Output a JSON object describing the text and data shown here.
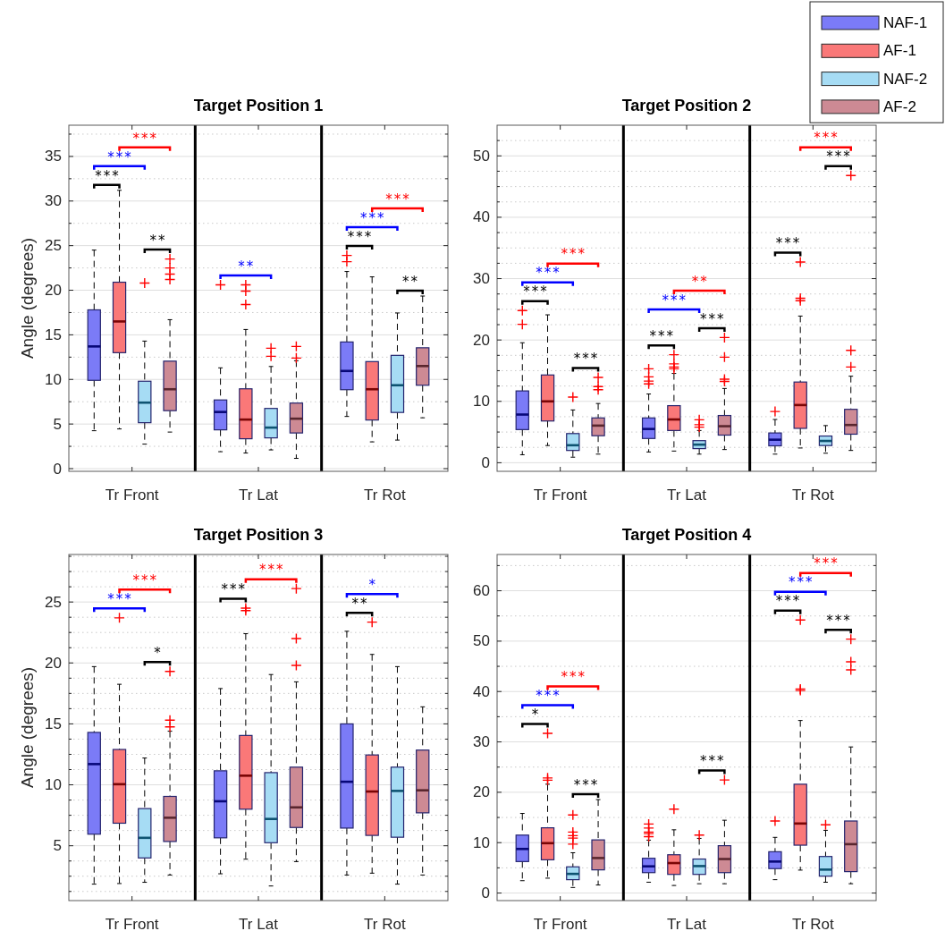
{
  "chart_data": [
    {
      "type": "box",
      "title": "Target Position 1",
      "ylabel": "Angle (degrees)",
      "categories": [
        "Tr Front",
        "Tr Lat",
        "Tr Rot"
      ],
      "ylim": [
        -0.3,
        38.5
      ],
      "yticks": [
        0,
        {
          "value": 2.5,
          "label": null
        },
        5,
        {
          "value": 7.5,
          "label": null
        },
        10,
        {
          "value": 12.5,
          "label": null
        },
        15,
        {
          "value": 17.5,
          "label": null
        },
        20,
        {
          "value": 22.5,
          "label": null
        },
        25,
        {
          "value": 27.5,
          "label": null
        },
        30,
        {
          "value": 32.5,
          "label": null
        },
        35,
        {
          "value": 37.5,
          "label": null
        }
      ],
      "grid": "y",
      "series": [
        {
          "color": "#7b7bf7",
          "boxes": [
            {
              "low": 4.25,
              "q1": 9.9,
              "median": 13.7,
              "q3": 17.8,
              "high": 24.5
            },
            {
              "low": 1.9,
              "q1": 4.35,
              "median": 6.35,
              "q3": 7.7,
              "high": 11.3,
              "outliers": [
                20.6
              ]
            },
            {
              "low": 5.85,
              "q1": 8.85,
              "median": 10.95,
              "q3": 14.2,
              "high": 22.1,
              "outliers": [
                23.9,
                23.2
              ]
            }
          ]
        },
        {
          "color": "#fa7878",
          "boxes": [
            {
              "low": 4.45,
              "q1": 13.0,
              "median": 16.5,
              "q3": 20.9,
              "high": 31.2
            },
            {
              "low": 1.75,
              "q1": 3.35,
              "median": 5.5,
              "q3": 8.95,
              "high": 15.6,
              "outliers": [
                20.6,
                19.9,
                18.4
              ]
            },
            {
              "low": 3.0,
              "q1": 5.45,
              "median": 8.9,
              "q3": 12.0,
              "high": 21.5
            }
          ]
        },
        {
          "color": "#a6dcf4",
          "boxes": [
            {
              "low": 2.75,
              "q1": 5.15,
              "median": 7.4,
              "q3": 9.8,
              "high": 14.3,
              "outliers": [
                20.8
              ]
            },
            {
              "low": 2.1,
              "q1": 3.45,
              "median": 4.6,
              "q3": 6.75,
              "high": 11.45,
              "outliers": [
                13.5,
                12.6
              ]
            },
            {
              "low": 3.2,
              "q1": 6.3,
              "median": 9.35,
              "q3": 12.7,
              "high": 17.45
            }
          ]
        },
        {
          "color": "#cd8a94",
          "boxes": [
            {
              "low": 4.1,
              "q1": 6.5,
              "median": 8.9,
              "q3": 12.05,
              "high": 16.7,
              "outliers": [
                23.5,
                22.5,
                21.8,
                21.2
              ]
            },
            {
              "low": 1.15,
              "q1": 4.0,
              "median": 5.6,
              "q3": 7.35,
              "high": 12.1,
              "outliers": [
                13.7,
                12.4
              ]
            },
            {
              "low": 5.7,
              "q1": 9.35,
              "median": 11.5,
              "q3": 13.55,
              "high": 19.35
            }
          ]
        }
      ],
      "annotations": [
        "***",
        "***",
        "***",
        "**",
        "**",
        "***",
        "***",
        "***",
        "**"
      ]
    },
    {
      "type": "box",
      "title": "Target Position 2",
      "categories": [
        "Tr Front",
        "Tr Lat",
        "Tr Rot"
      ],
      "ylim": [
        -1.4,
        55
      ],
      "yticks": [
        0,
        {
          "value": 2.5,
          "label": null
        },
        {
          "value": 5,
          "label": null
        },
        {
          "value": 7.5,
          "label": null
        },
        10,
        {
          "value": 12.5,
          "label": null
        },
        {
          "value": 15,
          "label": null
        },
        {
          "value": 17.5,
          "label": null
        },
        20,
        {
          "value": 22.5,
          "label": null
        },
        {
          "value": 25,
          "label": null
        },
        {
          "value": 27.5,
          "label": null
        },
        30,
        {
          "value": 32.5,
          "label": null
        },
        {
          "value": 35,
          "label": null
        },
        {
          "value": 37.5,
          "label": null
        },
        40,
        {
          "value": 42.5,
          "label": null
        },
        {
          "value": 45,
          "label": null
        },
        {
          "value": 47.5,
          "label": null
        },
        50,
        {
          "value": 52.5,
          "label": null
        }
      ],
      "grid": "y",
      "legend": "top right",
      "series": [
        {
          "name": "NAF-1",
          "color": "#7b7bf7",
          "boxes": [
            {
              "low": 1.3,
              "q1": 5.4,
              "median": 7.85,
              "q3": 11.7,
              "high": 19.55,
              "outliers": [
                24.8,
                22.55
              ]
            },
            {
              "low": 1.75,
              "q1": 3.95,
              "median": 5.5,
              "q3": 7.3,
              "high": 11.2,
              "outliers": [
                15.3,
                14.0,
                13.3,
                12.85
              ]
            },
            {
              "low": 1.4,
              "q1": 2.75,
              "median": 3.75,
              "q3": 4.85,
              "high": 7.05,
              "outliers": [
                8.35
              ]
            }
          ]
        },
        {
          "name": "AF-1",
          "color": "#fa7878",
          "boxes": [
            {
              "low": 2.8,
              "q1": 6.8,
              "median": 10.0,
              "q3": 14.3,
              "high": 24.1
            },
            {
              "low": 1.9,
              "q1": 5.25,
              "median": 7.05,
              "q3": 9.3,
              "high": 14.55,
              "outliers": [
                17.6,
                16.1,
                15.6,
                15.3
              ]
            },
            {
              "low": 2.4,
              "q1": 5.6,
              "median": 9.4,
              "q3": 13.15,
              "high": 23.9,
              "outliers": [
                32.7,
                26.8,
                26.4
              ]
            }
          ]
        },
        {
          "name": "NAF-2",
          "color": "#a6dcf4",
          "boxes": [
            {
              "low": 0.9,
              "q1": 2.0,
              "median": 2.85,
              "q3": 4.75,
              "high": 8.6,
              "outliers": [
                10.7
              ]
            },
            {
              "low": 1.4,
              "q1": 2.3,
              "median": 2.95,
              "q3": 3.6,
              "high": 5.25,
              "outliers": [
                7.0,
                6.2,
                5.8
              ]
            },
            {
              "low": 1.55,
              "q1": 2.8,
              "median": 3.55,
              "q3": 4.35,
              "high": 6.05
            }
          ]
        },
        {
          "name": "AF-2",
          "color": "#cd8a94",
          "boxes": [
            {
              "low": 1.4,
              "q1": 4.4,
              "median": 6.05,
              "q3": 7.3,
              "high": 9.65,
              "outliers": [
                13.9,
                12.4,
                11.9
              ]
            },
            {
              "low": 2.15,
              "q1": 4.5,
              "median": 5.95,
              "q3": 7.7,
              "high": 12.1,
              "outliers": [
                20.4,
                17.2,
                13.6,
                13.25
              ]
            },
            {
              "low": 2.0,
              "q1": 4.65,
              "median": 6.15,
              "q3": 8.7,
              "high": 14.1,
              "outliers": [
                46.8,
                18.3,
                15.6
              ]
            }
          ]
        }
      ],
      "annotations": [
        "***",
        "***",
        "***",
        "***",
        "***",
        "***",
        "**",
        "***",
        "***",
        "***",
        "***"
      ]
    },
    {
      "type": "box",
      "title": "Target Position 3",
      "ylabel": "Angle (degrees)",
      "categories": [
        "Tr Front",
        "Tr Lat",
        "Tr Rot"
      ],
      "ylim": [
        0.5,
        28.9
      ],
      "yticks": [
        {
          "value": 1.25,
          "label": null
        },
        {
          "value": 2.5,
          "label": null
        },
        {
          "value": 3.75,
          "label": null
        },
        5,
        {
          "value": 6.25,
          "label": null
        },
        {
          "value": 7.5,
          "label": null
        },
        {
          "value": 8.75,
          "label": null
        },
        10,
        {
          "value": 11.25,
          "label": null
        },
        {
          "value": 12.5,
          "label": null
        },
        {
          "value": 13.75,
          "label": null
        },
        15,
        {
          "value": 16.25,
          "label": null
        },
        {
          "value": 17.5,
          "label": null
        },
        {
          "value": 18.75,
          "label": null
        },
        20,
        {
          "value": 21.25,
          "label": null
        },
        {
          "value": 22.5,
          "label": null
        },
        {
          "value": 23.75,
          "label": null
        },
        25,
        {
          "value": 26.25,
          "label": null
        },
        {
          "value": 27.5,
          "label": null
        },
        {
          "value": 28.75,
          "label": null
        }
      ],
      "grid": "y",
      "series": [
        {
          "color": "#7b7bf7",
          "boxes": [
            {
              "low": 1.85,
              "q1": 5.95,
              "median": 11.7,
              "q3": 14.3,
              "high": 19.7
            },
            {
              "low": 2.7,
              "q1": 5.65,
              "median": 8.65,
              "q3": 11.15,
              "high": 17.9
            },
            {
              "low": 2.6,
              "q1": 6.45,
              "median": 10.25,
              "q3": 15.0,
              "high": 22.6
            }
          ]
        },
        {
          "color": "#fa7878",
          "boxes": [
            {
              "low": 1.9,
              "q1": 6.85,
              "median": 10.05,
              "q3": 12.9,
              "high": 18.25,
              "outliers": [
                23.7
              ]
            },
            {
              "low": 3.9,
              "q1": 8.0,
              "median": 10.75,
              "q3": 14.05,
              "high": 22.4,
              "outliers": [
                24.5,
                24.3
              ]
            },
            {
              "low": 2.75,
              "q1": 5.85,
              "median": 9.45,
              "q3": 12.45,
              "high": 20.7,
              "outliers": [
                23.35
              ]
            }
          ]
        },
        {
          "color": "#a6dcf4",
          "boxes": [
            {
              "low": 2.0,
              "q1": 4.0,
              "median": 5.65,
              "q3": 8.05,
              "high": 12.2
            },
            {
              "low": 1.7,
              "q1": 5.25,
              "median": 7.2,
              "q3": 11.0,
              "high": 19.05
            },
            {
              "low": 1.85,
              "q1": 5.7,
              "median": 9.5,
              "q3": 11.45,
              "high": 19.7
            }
          ]
        },
        {
          "color": "#cd8a94",
          "boxes": [
            {
              "low": 2.6,
              "q1": 5.35,
              "median": 7.3,
              "q3": 9.05,
              "high": 14.4,
              "outliers": [
                19.3,
                15.3,
                14.75
              ]
            },
            {
              "low": 3.7,
              "q1": 6.5,
              "median": 8.15,
              "q3": 11.45,
              "high": 18.45,
              "outliers": [
                26.1,
                22.0,
                19.8
              ]
            },
            {
              "low": 2.6,
              "q1": 7.7,
              "median": 9.55,
              "q3": 12.85,
              "high": 16.4
            }
          ]
        }
      ],
      "annotations": [
        "***",
        "***",
        "*",
        "***",
        "***",
        "**",
        "*"
      ]
    },
    {
      "type": "box",
      "title": "Target Position 4",
      "categories": [
        "Tr Front",
        "Tr Lat",
        "Tr Rot"
      ],
      "ylim": [
        -1.5,
        67.2
      ],
      "yticks": [
        0,
        {
          "value": 5,
          "label": null
        },
        10,
        {
          "value": 15,
          "label": null
        },
        20,
        {
          "value": 25,
          "label": null
        },
        30,
        {
          "value": 35,
          "label": null
        },
        40,
        {
          "value": 45,
          "label": null
        },
        50,
        {
          "value": 55,
          "label": null
        },
        60,
        {
          "value": 65,
          "label": null
        }
      ],
      "grid": "y",
      "series": [
        {
          "color": "#7b7bf7",
          "boxes": [
            {
              "low": 2.45,
              "q1": 6.25,
              "median": 8.75,
              "q3": 11.5,
              "high": 15.8
            },
            {
              "low": 2.15,
              "q1": 4.05,
              "median": 5.3,
              "q3": 6.9,
              "high": 10.5,
              "outliers": [
                13.7,
                12.9,
                12.1,
                11.8,
                11.2
              ]
            },
            {
              "low": 2.65,
              "q1": 4.85,
              "median": 6.25,
              "q3": 8.2,
              "high": 11.05,
              "outliers": [
                14.3
              ]
            }
          ]
        },
        {
          "color": "#fa7878",
          "boxes": [
            {
              "low": 2.95,
              "q1": 6.6,
              "median": 9.9,
              "q3": 12.95,
              "high": 21.6,
              "outliers": [
                31.7,
                22.85,
                22.4
              ]
            },
            {
              "low": 1.5,
              "q1": 3.7,
              "median": 5.95,
              "q3": 7.6,
              "high": 12.55,
              "outliers": [
                16.65
              ]
            },
            {
              "low": 4.55,
              "q1": 9.5,
              "median": 13.8,
              "q3": 21.6,
              "high": 34.25,
              "outliers": [
                54.2,
                40.5,
                40.2
              ]
            }
          ]
        },
        {
          "color": "#a6dcf4",
          "boxes": [
            {
              "low": 1.1,
              "q1": 2.65,
              "median": 3.8,
              "q3": 5.2,
              "high": 8.0,
              "outliers": [
                15.5,
                12.1,
                11.4,
                10.9,
                9.7
              ]
            },
            {
              "low": 1.85,
              "q1": 3.7,
              "median": 5.35,
              "q3": 6.75,
              "high": 10.85,
              "outliers": [
                11.5
              ]
            },
            {
              "low": 2.15,
              "q1": 3.35,
              "median": 4.65,
              "q3": 7.25,
              "high": 12.45,
              "outliers": [
                13.55
              ]
            }
          ]
        },
        {
          "color": "#cd8a94",
          "boxes": [
            {
              "low": 1.6,
              "q1": 4.6,
              "median": 6.95,
              "q3": 10.55,
              "high": 18.55
            },
            {
              "low": 1.85,
              "q1": 4.05,
              "median": 6.75,
              "q3": 9.4,
              "high": 14.45,
              "outliers": [
                22.45
              ]
            },
            {
              "low": 1.85,
              "q1": 4.25,
              "median": 9.7,
              "q3": 14.3,
              "high": 29.0,
              "outliers": [
                50.4,
                45.9,
                44.3
              ]
            }
          ]
        }
      ],
      "annotations": [
        "*",
        "***",
        "***",
        "***",
        "***",
        "***",
        "***",
        "***",
        "***"
      ]
    }
  ]
}
